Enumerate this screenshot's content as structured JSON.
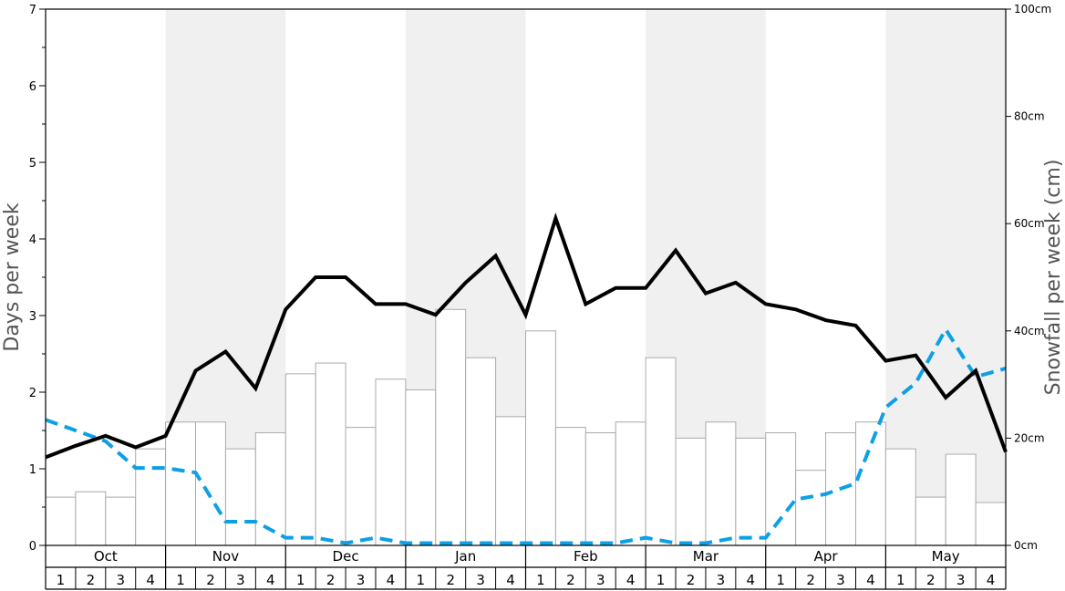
{
  "chart_data": {
    "type": "bar",
    "y_left_label": "Days per week",
    "y_right_label": "Snowfall per week (cm)",
    "y_left_range": [
      0,
      7
    ],
    "y_right_range": [
      0,
      100
    ],
    "y_left_ticks": [
      "0",
      "1",
      "2",
      "3",
      "4",
      "5",
      "6",
      "7"
    ],
    "y_right_ticks": [
      "0cm",
      "20cm",
      "40cm",
      "60cm",
      "80cm",
      "100cm"
    ],
    "months": [
      "Oct",
      "Nov",
      "Dec",
      "Jan",
      "Feb",
      "Mar",
      "Apr",
      "May"
    ],
    "weeks": [
      "1",
      "2",
      "3",
      "4"
    ],
    "colors": {
      "shade": "#f0f0f0",
      "bar_fill": "#ffffff",
      "bar_stroke": "#aaaaaa",
      "solid_line": "#000000",
      "dashed_line": "#0ea0e4"
    },
    "series": [
      {
        "kind": "bars",
        "axis": "right",
        "values": [
          9,
          10,
          9,
          18,
          23,
          23,
          18,
          21,
          32,
          34,
          22,
          31,
          29,
          44,
          35,
          24,
          40,
          22,
          21,
          23,
          35,
          20,
          23,
          20,
          21,
          14,
          21,
          23,
          18,
          9,
          17,
          8
        ]
      },
      {
        "kind": "solid-line",
        "axis": "left",
        "values": [
          1.15,
          1.3,
          1.43,
          1.28,
          1.43,
          2.28,
          2.53,
          2.05,
          3.08,
          3.5,
          3.5,
          3.15,
          3.15,
          3.01,
          3.43,
          3.78,
          3.01,
          4.27,
          3.15,
          3.36,
          3.36,
          3.85,
          3.29,
          3.43,
          3.15,
          3.08,
          2.94,
          2.87,
          2.41,
          2.48,
          1.93,
          2.28,
          1.22
        ]
      },
      {
        "kind": "dashed-line",
        "axis": "left",
        "values": [
          1.64,
          1.5,
          1.36,
          1.01,
          1.01,
          0.95,
          0.31,
          0.31,
          0.1,
          0.1,
          0.03,
          0.1,
          0.03,
          0.03,
          0.03,
          0.03,
          0.03,
          0.03,
          0.03,
          0.03,
          0.1,
          0.03,
          0.03,
          0.1,
          0.1,
          0.6,
          0.67,
          0.81,
          1.8,
          2.12,
          2.82,
          2.2,
          2.31
        ]
      }
    ]
  }
}
